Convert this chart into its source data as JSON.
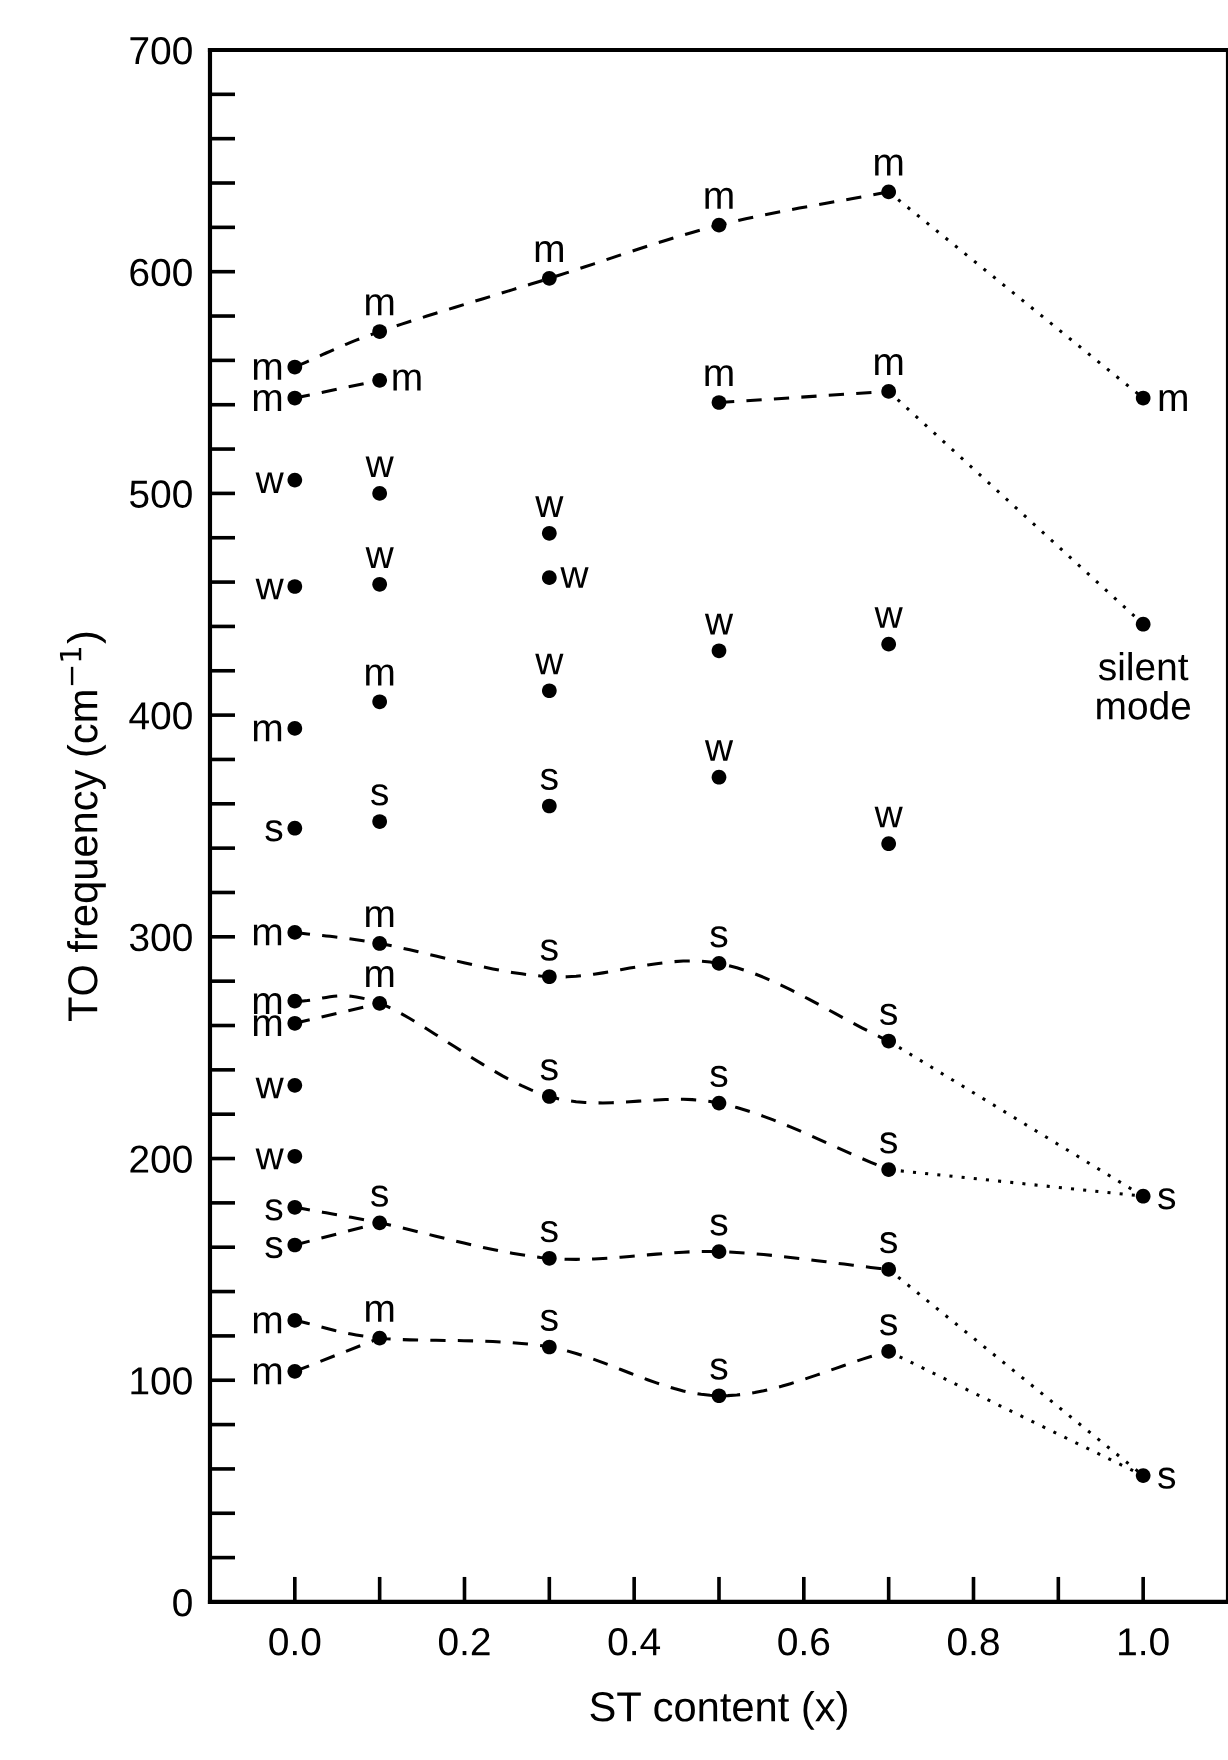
{
  "chart_data": {
    "type": "scatter",
    "xlabel": "ST content (x)",
    "ylabel": "TO frequency (cm$^{−1}$)",
    "xlim": [
      -0.1,
      1.1
    ],
    "ylim": [
      0,
      700
    ],
    "xticks": [
      {
        "value": 0.0,
        "label": "0.0"
      },
      {
        "value": 0.1,
        "label": null
      },
      {
        "value": 0.2,
        "label": "0.2"
      },
      {
        "value": 0.3,
        "label": null
      },
      {
        "value": 0.4,
        "label": "0.4"
      },
      {
        "value": 0.5,
        "label": null
      },
      {
        "value": 0.6,
        "label": "0.6"
      },
      {
        "value": 0.7,
        "label": null
      },
      {
        "value": 0.8,
        "label": "0.8"
      },
      {
        "value": 0.9,
        "label": null
      },
      {
        "value": 1.0,
        "label": "1.0"
      }
    ],
    "yticks": [
      0,
      {
        "value": 20,
        "label": null
      },
      {
        "value": 40,
        "label": null
      },
      {
        "value": 60,
        "label": null
      },
      {
        "value": 80,
        "label": null
      },
      100,
      {
        "value": 120,
        "label": null
      },
      {
        "value": 140,
        "label": null
      },
      {
        "value": 160,
        "label": null
      },
      {
        "value": 180,
        "label": null
      },
      200,
      {
        "value": 220,
        "label": null
      },
      {
        "value": 240,
        "label": null
      },
      {
        "value": 260,
        "label": null
      },
      {
        "value": 280,
        "label": null
      },
      300,
      {
        "value": 320,
        "label": null
      },
      {
        "value": 340,
        "label": null
      },
      {
        "value": 360,
        "label": null
      },
      {
        "value": 380,
        "label": null
      },
      400,
      {
        "value": 420,
        "label": null
      },
      {
        "value": 440,
        "label": null
      },
      {
        "value": 460,
        "label": null
      },
      {
        "value": 480,
        "label": null
      },
      500,
      {
        "value": 520,
        "label": null
      },
      {
        "value": 540,
        "label": null
      },
      {
        "value": 560,
        "label": null
      },
      {
        "value": 580,
        "label": null
      },
      600,
      {
        "value": 620,
        "label": null
      },
      {
        "value": 640,
        "label": null
      },
      {
        "value": 660,
        "label": null
      },
      {
        "value": 680,
        "label": null
      },
      700
    ],
    "grid": false,
    "series": [
      {
        "color": "#000000",
        "marker": "circle",
        "x": [
          0,
          0,
          0,
          0,
          0,
          0,
          0,
          0,
          0,
          0,
          0,
          0,
          0,
          0,
          0,
          0.1,
          0.1,
          0.1,
          0.1,
          0.1,
          0.1,
          0.1,
          0.1,
          0.1,
          0.1,
          0.3,
          0.3,
          0.3,
          0.3,
          0.3,
          0.3,
          0.3,
          0.3,
          0.3,
          0.5,
          0.5,
          0.5,
          0.5,
          0.5,
          0.5,
          0.5,
          0.5,
          0.7,
          0.7,
          0.7,
          0.7,
          0.7,
          0.7,
          0.7,
          0.7,
          1.0,
          1.0,
          1.0,
          1.0
        ],
        "values": [
          557,
          543,
          506,
          458,
          394,
          349,
          302,
          271,
          261,
          233,
          201,
          178,
          161,
          127,
          104,
          573,
          551,
          500,
          459,
          406,
          352,
          297,
          270,
          171,
          119,
          597,
          482,
          462,
          411,
          359,
          282,
          228,
          155,
          115,
          621,
          541,
          429,
          372,
          288,
          225,
          158,
          93,
          636,
          546,
          432,
          342,
          253,
          195,
          150,
          113,
          543,
          441,
          183,
          57
        ]
      },
      {
        "type": "line",
        "color": "#000000",
        "marker": "none",
        "line_style": "dashed",
        "x": [
          0,
          0.1,
          0.3,
          0.5,
          0.7
        ],
        "values": [
          557,
          573,
          597,
          621,
          636
        ]
      },
      {
        "type": "line",
        "color": "#000000",
        "marker": "none",
        "line_style": "dotted",
        "x": [
          0.7,
          1.0
        ],
        "values": [
          636,
          543
        ]
      },
      {
        "type": "line",
        "color": "#000000",
        "marker": "none",
        "line_style": "dashed",
        "x": [
          0,
          0.1
        ],
        "values": [
          543,
          551
        ]
      },
      {
        "type": "line",
        "color": "#000000",
        "marker": "none",
        "line_style": "dashed",
        "x": [
          0.5,
          0.7
        ],
        "values": [
          541,
          546
        ]
      },
      {
        "type": "line",
        "color": "#000000",
        "marker": "none",
        "line_style": "dotted",
        "x": [
          0.7,
          1.0
        ],
        "values": [
          546,
          441
        ]
      },
      {
        "type": "line",
        "color": "#000000",
        "marker": "none",
        "line_style": "dashed",
        "x": [
          0,
          0.1,
          0.3,
          0.5,
          0.7
        ],
        "values": [
          302,
          297,
          282,
          288,
          253
        ]
      },
      {
        "type": "line",
        "color": "#000000",
        "marker": "none",
        "line_style": "dotted",
        "x": [
          0.7,
          1.0
        ],
        "values": [
          253,
          183
        ]
      },
      {
        "type": "line",
        "color": "#000000",
        "marker": "none",
        "line_style": "dashed",
        "x": [
          0,
          0.1,
          0.3,
          0.5,
          0.7
        ],
        "values": [
          271,
          270,
          228,
          225,
          195
        ]
      },
      {
        "type": "line",
        "color": "#000000",
        "marker": "none",
        "line_style": "dashed",
        "x": [
          0,
          0.1
        ],
        "values": [
          261,
          270
        ]
      },
      {
        "type": "line",
        "color": "#000000",
        "marker": "none",
        "line_style": "dotted",
        "x": [
          0.7,
          1.0
        ],
        "values": [
          195,
          183
        ]
      },
      {
        "type": "line",
        "color": "#000000",
        "marker": "none",
        "line_style": "dashed",
        "x": [
          0,
          0.1,
          0.3,
          0.5,
          0.7
        ],
        "values": [
          178,
          171,
          155,
          158,
          150
        ]
      },
      {
        "type": "line",
        "color": "#000000",
        "marker": "none",
        "line_style": "dashed",
        "x": [
          0,
          0.1
        ],
        "values": [
          161,
          171
        ]
      },
      {
        "type": "line",
        "color": "#000000",
        "marker": "none",
        "line_style": "dotted",
        "x": [
          0.7,
          1.0
        ],
        "values": [
          150,
          57
        ]
      },
      {
        "type": "line",
        "color": "#000000",
        "marker": "none",
        "line_style": "dashed",
        "x": [
          0,
          0.1,
          0.3,
          0.5,
          0.7
        ],
        "values": [
          127,
          119,
          115,
          93,
          113
        ]
      },
      {
        "type": "line",
        "color": "#000000",
        "marker": "none",
        "line_style": "dashed",
        "x": [
          0,
          0.1
        ],
        "values": [
          104,
          119
        ]
      },
      {
        "type": "line",
        "color": "#000000",
        "marker": "none",
        "line_style": "dotted",
        "x": [
          0.7,
          1.0
        ],
        "values": [
          113,
          57
        ]
      }
    ],
    "annotations": [
      {
        "text": "m",
        "x": 0,
        "y": 557
      },
      {
        "text": "m",
        "x": 0,
        "y": 543
      },
      {
        "text": "w",
        "x": 0,
        "y": 506
      },
      {
        "text": "w",
        "x": 0,
        "y": 458
      },
      {
        "text": "m",
        "x": 0,
        "y": 394
      },
      {
        "text": "s",
        "x": 0,
        "y": 349
      },
      {
        "text": "m",
        "x": 0,
        "y": 302
      },
      {
        "text": "m",
        "x": 0,
        "y": 271
      },
      {
        "text": "m",
        "x": 0,
        "y": 261
      },
      {
        "text": "w",
        "x": 0,
        "y": 233
      },
      {
        "text": "w",
        "x": 0,
        "y": 201
      },
      {
        "text": "s",
        "x": 0,
        "y": 178
      },
      {
        "text": "s",
        "x": 0,
        "y": 161
      },
      {
        "text": "m",
        "x": 0,
        "y": 127
      },
      {
        "text": "m",
        "x": 0,
        "y": 104
      },
      {
        "text": "m",
        "x": 0.1,
        "y": 573
      },
      {
        "text": "m",
        "x": 0.1,
        "y": 551
      },
      {
        "text": "w",
        "x": 0.1,
        "y": 500
      },
      {
        "text": "w",
        "x": 0.1,
        "y": 459
      },
      {
        "text": "m",
        "x": 0.1,
        "y": 406
      },
      {
        "text": "s",
        "x": 0.1,
        "y": 352
      },
      {
        "text": "m",
        "x": 0.1,
        "y": 297
      },
      {
        "text": "m",
        "x": 0.1,
        "y": 270
      },
      {
        "text": "s",
        "x": 0.1,
        "y": 171
      },
      {
        "text": "m",
        "x": 0.1,
        "y": 119
      },
      {
        "text": "m",
        "x": 0.3,
        "y": 597
      },
      {
        "text": "w",
        "x": 0.3,
        "y": 482
      },
      {
        "text": "w",
        "x": 0.3,
        "y": 462
      },
      {
        "text": "w",
        "x": 0.3,
        "y": 411
      },
      {
        "text": "s",
        "x": 0.3,
        "y": 359
      },
      {
        "text": "s",
        "x": 0.3,
        "y": 282
      },
      {
        "text": "s",
        "x": 0.3,
        "y": 228
      },
      {
        "text": "s",
        "x": 0.3,
        "y": 155
      },
      {
        "text": "s",
        "x": 0.3,
        "y": 115
      },
      {
        "text": "m",
        "x": 0.5,
        "y": 621
      },
      {
        "text": "m",
        "x": 0.5,
        "y": 541
      },
      {
        "text": "w",
        "x": 0.5,
        "y": 429
      },
      {
        "text": "w",
        "x": 0.5,
        "y": 372
      },
      {
        "text": "s",
        "x": 0.5,
        "y": 288
      },
      {
        "text": "s",
        "x": 0.5,
        "y": 225
      },
      {
        "text": "s",
        "x": 0.5,
        "y": 158
      },
      {
        "text": "s",
        "x": 0.5,
        "y": 93
      },
      {
        "text": "m",
        "x": 0.7,
        "y": 636
      },
      {
        "text": "m",
        "x": 0.7,
        "y": 546
      },
      {
        "text": "w",
        "x": 0.7,
        "y": 432
      },
      {
        "text": "w",
        "x": 0.7,
        "y": 342
      },
      {
        "text": "s",
        "x": 0.7,
        "y": 253
      },
      {
        "text": "s",
        "x": 0.7,
        "y": 195
      },
      {
        "text": "s",
        "x": 0.7,
        "y": 150
      },
      {
        "text": "s",
        "x": 0.7,
        "y": 113
      },
      {
        "text": "m",
        "x": 1.0,
        "y": 543
      },
      {
        "text": "silent\nmode",
        "x": 1.0,
        "y": 441
      },
      {
        "text": "s",
        "x": 1.0,
        "y": 183
      },
      {
        "text": "s",
        "x": 1.0,
        "y": 57
      }
    ]
  }
}
